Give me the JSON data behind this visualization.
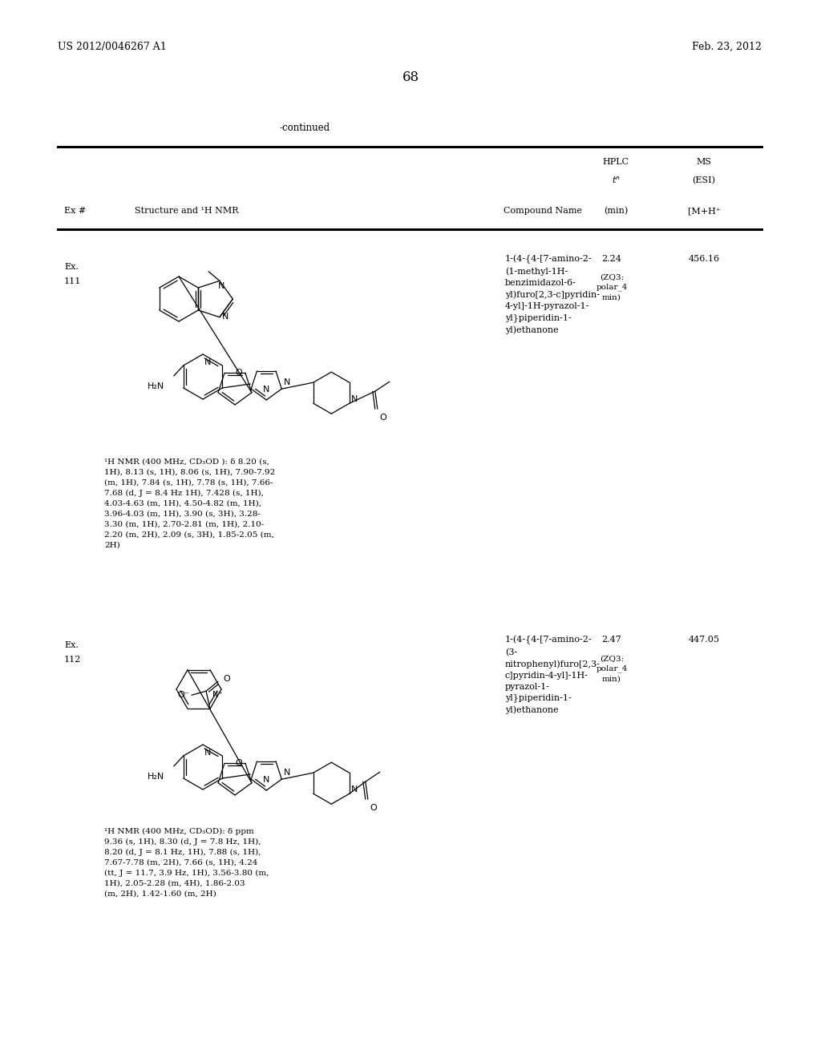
{
  "bg_color": "#ffffff",
  "page_header_left": "US 2012/0046267 A1",
  "page_header_right": "Feb. 23, 2012",
  "page_number": "68",
  "continued_text": "-continued",
  "ex111_num_a": "Ex.",
  "ex111_num_b": "111",
  "ex111_compound_name": "1-(4-{4-[7-amino-2-\n(1-methyl-1H-\nbenzimidazol-6-\nyl)furo[2,3-c]pyridin-\n4-yl]-1H-pyrazol-1-\nyl}piperidin-1-\nyl)ethanone",
  "ex111_hplc_tr": "2.24",
  "ex111_hplc_method": "(ZQ3:\npolar_4\nmin)",
  "ex111_ms": "456.16",
  "ex111_nmr_line1": "¹H NMR (400 MHz, CD₃OD ): δ 8.20 (s,",
  "ex111_nmr_line2": "1H), 8.13 (s, 1H), 8.06 (s, 1H), 7.90-7.92",
  "ex111_nmr_line3": "(m, 1H), 7.84 (s, 1H), 7.78 (s, 1H), 7.66-",
  "ex111_nmr_line4": "7.68 (d, J = 8.4 Hz 1H), 7.428 (s, 1H),",
  "ex111_nmr_line5": "4.03-4.63 (m, 1H), 4.50-4.82 (m, 1H),",
  "ex111_nmr_line6": "3.96-4.03 (m, 1H), 3.90 (s, 3H), 3.28-",
  "ex111_nmr_line7": "3.30 (m, 1H), 2.70-2.81 (m, 1H), 2.10-",
  "ex111_nmr_line8": "2.20 (m, 2H), 2.09 (s, 3H), 1.85-2.05 (m,",
  "ex111_nmr_line9": "2H)",
  "ex112_num_a": "Ex.",
  "ex112_num_b": "112",
  "ex112_compound_name": "1-(4-{4-[7-amino-2-\n(3-\nnitrophenyl)furo[2,3-\nc]pyridin-4-yl]-1H-\npyrazol-1-\nyl}piperidin-1-\nyl)ethanone",
  "ex112_hplc_tr": "2.47",
  "ex112_hplc_method": "(ZQ3:\npolar_4\nmin)",
  "ex112_ms": "447.05",
  "ex112_nmr_line1": "¹H NMR (400 MHz, CD₃OD): δ ppm",
  "ex112_nmr_line2": "9.36 (s, 1H), 8.30 (d, J = 7.8 Hz, 1H),",
  "ex112_nmr_line3": "8.20 (d, J = 8.1 Hz, 1H), 7.88 (s, 1H),",
  "ex112_nmr_line4": "7.67-7.78 (m, 2H), 7.66 (s, 1H), 4.24",
  "ex112_nmr_line5": "(tt, J = 11.7, 3.9 Hz, 1H), 3.56-3.80 (m,",
  "ex112_nmr_line6": "1H), 2.05-2.28 (m, 4H), 1.86-2.03",
  "ex112_nmr_line7": "(m, 2H), 1.42-1.60 (m, 2H)",
  "table_header_hplc": "HPLC",
  "table_header_tr": "tᴿ",
  "table_header_min": "(min)",
  "table_header_ms": "MS",
  "table_header_esi": "(ESI)",
  "table_header_mh": "[M+H⁺",
  "table_header_ex": "Ex #",
  "table_header_struct": "Structure and ¹H NMR",
  "table_header_name": "Compound Name"
}
